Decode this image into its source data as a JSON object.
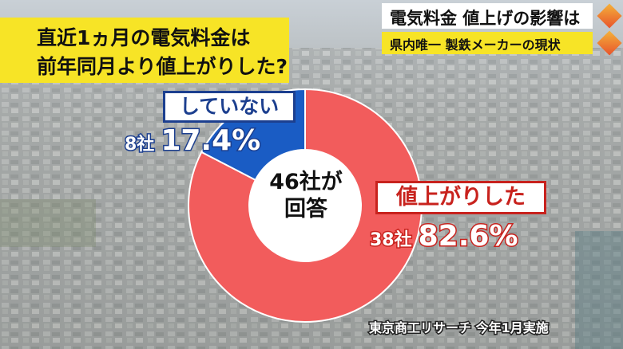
{
  "question": {
    "line1": "直近1ヵ月の電気料金は",
    "line2": "前年同月より値上がりした?"
  },
  "headline": "電気料金 値上げの影響は",
  "subhead": "県内唯一 製鉄メーカーの現状",
  "center": {
    "line1": "46社が",
    "line2": "回答"
  },
  "source": "東京商工リサーチ 今年1月実施",
  "colors": {
    "yes": "#f25c5c",
    "no": "#1a5cc4",
    "question_bg": "#f7e426"
  },
  "chart_data": {
    "type": "pie",
    "donut": true,
    "total_label": "46社が回答",
    "slices": [
      {
        "label": "値上がりした",
        "count": "38社",
        "percent_text": "82.6%",
        "value": 82.6
      },
      {
        "label": "していない",
        "count": "8社",
        "percent_text": "17.4%",
        "value": 17.4
      }
    ]
  }
}
